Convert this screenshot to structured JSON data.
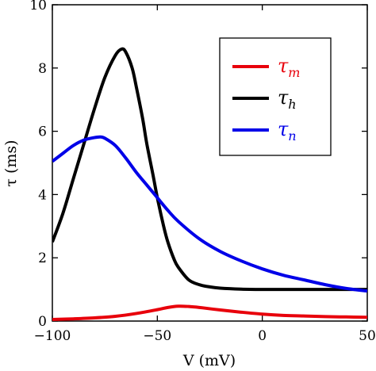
{
  "chart_data": {
    "type": "line",
    "xlabel": "V (mV)",
    "ylabel": "τ (ms)",
    "xlim": [
      -100,
      50
    ],
    "ylim": [
      0,
      10
    ],
    "xticks": [
      -100,
      -50,
      0,
      50
    ],
    "yticks": [
      0,
      2,
      4,
      6,
      8,
      10
    ],
    "xtick_labels": [
      "−100",
      "−50",
      "0",
      "50"
    ],
    "ytick_labels": [
      "0",
      "2",
      "4",
      "6",
      "8",
      "10"
    ],
    "grid": false,
    "legend_position": "top-right",
    "series": [
      {
        "name": "τm",
        "symbol": "τ",
        "subscript": "m",
        "color": "#e8000b",
        "x": [
          -100,
          -90,
          -80,
          -70,
          -60,
          -50,
          -45,
          -40,
          -35,
          -30,
          -20,
          -10,
          0,
          10,
          20,
          30,
          40,
          50
        ],
        "y": [
          0.05,
          0.07,
          0.1,
          0.15,
          0.24,
          0.36,
          0.43,
          0.47,
          0.46,
          0.43,
          0.35,
          0.28,
          0.22,
          0.18,
          0.16,
          0.14,
          0.13,
          0.12
        ]
      },
      {
        "name": "τh",
        "symbol": "τ",
        "subscript": "h",
        "color": "#000000",
        "x": [
          -100,
          -95,
          -90,
          -85,
          -80,
          -75,
          -70,
          -67,
          -65,
          -62,
          -60,
          -57,
          -55,
          -52,
          -50,
          -47,
          -45,
          -42,
          -40,
          -35,
          -30,
          -25,
          -20,
          -10,
          0,
          10,
          20,
          30,
          40,
          50
        ],
        "y": [
          2.5,
          3.4,
          4.5,
          5.6,
          6.7,
          7.7,
          8.4,
          8.6,
          8.5,
          8.0,
          7.4,
          6.4,
          5.6,
          4.6,
          3.9,
          3.0,
          2.5,
          1.95,
          1.7,
          1.3,
          1.15,
          1.08,
          1.04,
          1.01,
          1.0,
          1.0,
          1.0,
          1.0,
          1.0,
          1.0
        ]
      },
      {
        "name": "τn",
        "symbol": "τ",
        "subscript": "n",
        "color": "#0000e8",
        "x": [
          -100,
          -95,
          -90,
          -85,
          -80,
          -77,
          -75,
          -70,
          -65,
          -60,
          -55,
          -50,
          -45,
          -40,
          -30,
          -20,
          -10,
          0,
          10,
          20,
          30,
          40,
          50
        ],
        "y": [
          5.05,
          5.3,
          5.55,
          5.72,
          5.8,
          5.82,
          5.78,
          5.55,
          5.15,
          4.7,
          4.3,
          3.9,
          3.5,
          3.15,
          2.6,
          2.2,
          1.9,
          1.65,
          1.45,
          1.3,
          1.15,
          1.03,
          0.95
        ]
      }
    ]
  }
}
